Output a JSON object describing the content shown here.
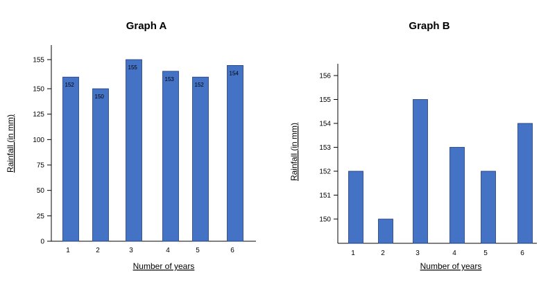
{
  "chart_data": [
    {
      "type": "bar",
      "title": "Graph A",
      "xlabel": "Number of years",
      "ylabel": "Rainfall (in mm)",
      "categories": [
        "1",
        "2",
        "3",
        "4",
        "5",
        "6"
      ],
      "values": [
        152,
        150,
        155,
        153,
        152,
        154
      ],
      "data_labels": [
        "152",
        "150",
        "155",
        "153",
        "152",
        "154"
      ],
      "y_ticks": [
        "0",
        "25",
        "50",
        "75",
        "100",
        "125",
        "150",
        "155"
      ],
      "y_axis_note": "non-linear scale: 0 to 150 in steps of 25, then 150 to 155",
      "bar_color": "#4472C4",
      "grid": false,
      "legend": "none"
    },
    {
      "type": "bar",
      "title": "Graph B",
      "xlabel": "Number of years",
      "ylabel": "Rainfall (in mm)",
      "categories": [
        "1",
        "2",
        "3",
        "4",
        "5",
        "6"
      ],
      "values": [
        152,
        150,
        155,
        153,
        152,
        154
      ],
      "y_ticks": [
        "150",
        "151",
        "152",
        "153",
        "154",
        "155",
        "156"
      ],
      "ylim": [
        149,
        156.3
      ],
      "bar_color": "#4472C4",
      "grid": false,
      "legend": "none"
    }
  ]
}
